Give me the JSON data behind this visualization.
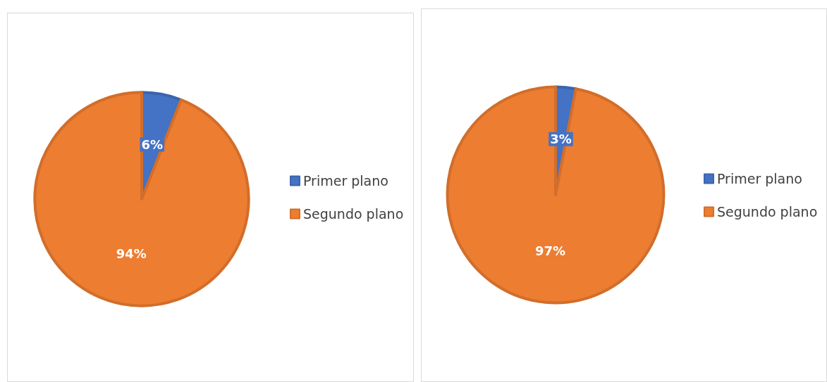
{
  "chart_data": [
    {
      "type": "pie",
      "categories": [
        "Primer plano",
        "Segundo plano"
      ],
      "values": [
        6,
        94
      ],
      "colors": [
        "#4472c4",
        "#ed7d31"
      ],
      "value_labels": [
        "6%",
        "94%"
      ],
      "legend": "right"
    },
    {
      "type": "pie",
      "categories": [
        "Primer plano",
        "Segundo plano"
      ],
      "values": [
        3,
        97
      ],
      "colors": [
        "#4472c4",
        "#ed7d31"
      ],
      "value_labels": [
        "3%",
        "97%"
      ],
      "legend": "right"
    }
  ]
}
